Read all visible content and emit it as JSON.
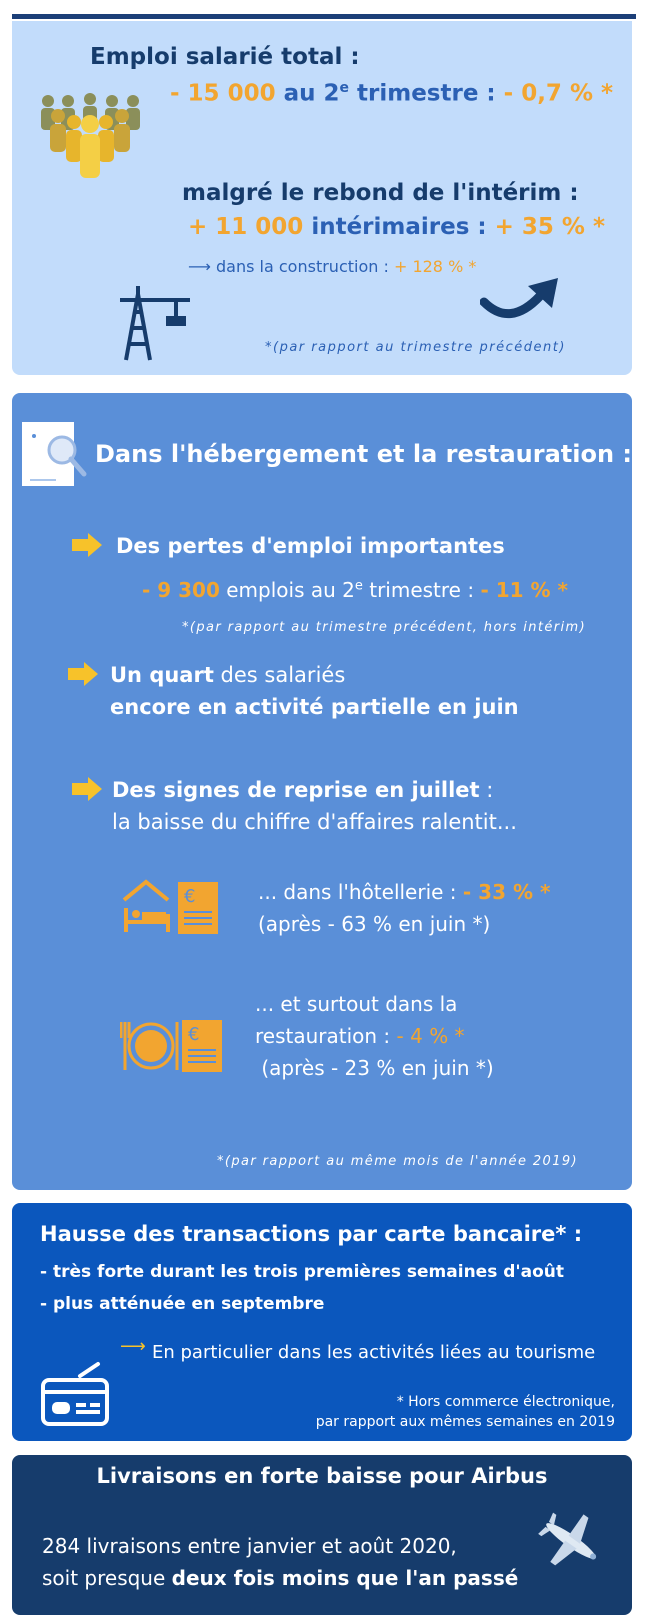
{
  "panel1": {
    "title": "Emploi salarié total :",
    "line2": {
      "a": "- 15 000",
      "b": " au 2",
      "sup": "e",
      "c": " trimestre : ",
      "d": "- 0,7 % *"
    },
    "line3": "malgré le rebond de l'intérim :",
    "line4": {
      "a": "+ 11 000",
      "b": " intérimaires : ",
      "c": "+ 35 % *"
    },
    "line5": {
      "arrow": "⟶",
      "a": " dans la construction : ",
      "b": "+ 128 % *"
    },
    "note": "*(par rapport au trimestre précédent)"
  },
  "panel2": {
    "title": "Dans l'hébergement et la restauration :",
    "item1": {
      "heading": "Des pertes d'emploi importantes",
      "a": "- 9 300",
      "b": " emplois au 2",
      "sup": "e",
      "c": " trimestre : ",
      "d": "- 11 % *",
      "note": "*(par rapport au trimestre précédent, hors intérim)"
    },
    "item2": {
      "bold1": "Un quart",
      "rest1": " des salariés",
      "line2": "encore en activité partielle en juin"
    },
    "item3": {
      "bold1": "Des signes de reprise en juillet",
      "rest1": " :",
      "line2": "la baisse du chiffre d'affaires ralentit..."
    },
    "hotel": {
      "a": "... dans l'hôtellerie : ",
      "b": "- 33 % *",
      "line2": "(après - 63 % en juin *)"
    },
    "resto": {
      "line1": "... et surtout dans la",
      "a": "restauration : ",
      "b": "- 4 % *",
      "line3": " (après - 23 % en juin *)"
    },
    "note": "*(par rapport au même mois de l'année 2019)"
  },
  "panel3": {
    "title": "Hausse des transactions par carte bancaire* :",
    "b1": "- très forte durant les trois premières semaines d'août",
    "b2": "- plus atténuée en septembre",
    "arrow": "⟶",
    "text": "En particulier dans les activités liées au tourisme",
    "note1": "* Hors commerce électronique,",
    "note2": "par rapport aux mêmes semaines en 2019"
  },
  "panel4": {
    "title": "Livraisons en forte baisse pour Airbus",
    "line1": "284 livraisons entre janvier et août 2020,",
    "line2a": "soit presque ",
    "line2b": "deux fois moins que l'an passé"
  },
  "colors": {
    "dark": "#163c6c",
    "orange": "#f2a530",
    "blue": "#2b60b4",
    "panel1": "#c2dcfb",
    "panel2": "#5a8fd8",
    "panel3": "#0b57bd",
    "panel4": "#163c6c"
  },
  "icons": [
    "people-group-icon",
    "construction-crane-icon",
    "curved-up-arrow-icon",
    "magnifier-document-icon",
    "orange-arrow-icon",
    "hotel-bed-icon",
    "euro-receipt-icon",
    "plate-cutlery-icon",
    "credit-card-icon",
    "airplane-icon"
  ]
}
